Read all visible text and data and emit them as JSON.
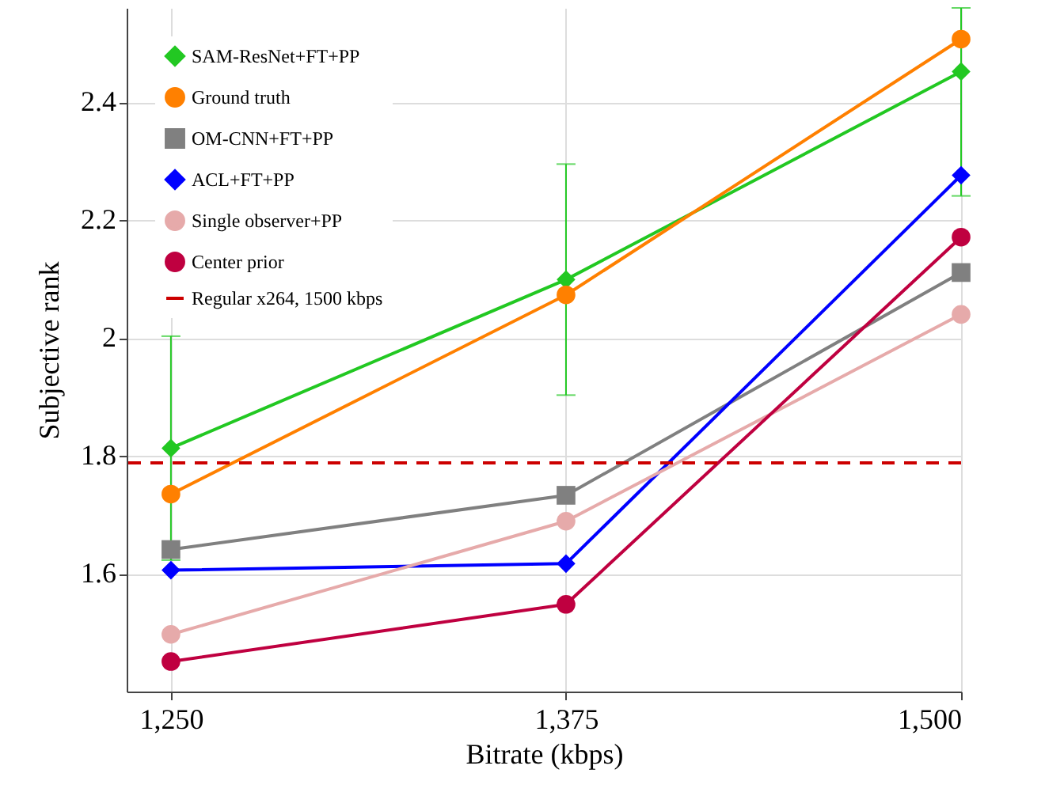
{
  "chart_data": {
    "type": "line",
    "xlabel": "Bitrate (kbps)",
    "ylabel": "Subjective rank",
    "x": [
      1250,
      1375,
      1500
    ],
    "xlim": [
      1236,
      1500
    ],
    "ylim": [
      1.4,
      2.56
    ],
    "xticks": [
      {
        "value": 1250,
        "label": "1,250"
      },
      {
        "value": 1375,
        "label": "1,375"
      },
      {
        "value": 1500,
        "label": "1,500"
      }
    ],
    "yticks": [
      1.6,
      1.8,
      2,
      2.2,
      2.4
    ],
    "grid": true,
    "legend": "top left",
    "series": [
      {
        "name": "SAM-ResNet+FT+PP",
        "color": "#22c822",
        "marker": "diamond",
        "values": [
          1.813,
          2.099,
          2.452
        ],
        "errors": [
          0.19,
          0.196,
          [
            2.241,
            2.56
          ]
        ]
      },
      {
        "name": "Ground truth",
        "color": "#ff8000",
        "marker": "circle",
        "values": [
          1.735,
          2.073,
          2.507
        ]
      },
      {
        "name": "OM-CNN+FT+PP",
        "color": "#808080",
        "marker": "square",
        "values": [
          1.641,
          1.733,
          2.111
        ]
      },
      {
        "name": "ACL+FT+PP",
        "color": "#0000ff",
        "marker": "diamond",
        "values": [
          1.606,
          1.617,
          2.276
        ]
      },
      {
        "name": "Single observer+PP",
        "color": "#e6aaaa",
        "marker": "circle",
        "values": [
          1.497,
          1.689,
          2.04
        ]
      },
      {
        "name": "Center prior",
        "color": "#bf0040",
        "marker": "circle",
        "values": [
          1.451,
          1.548,
          2.171
        ]
      }
    ],
    "ref_lines": [
      {
        "axis": "y",
        "value": 1.788,
        "label": "Regular x264, 1500 kbps",
        "color": "#cc0000",
        "line_style": "dashed"
      }
    ]
  }
}
